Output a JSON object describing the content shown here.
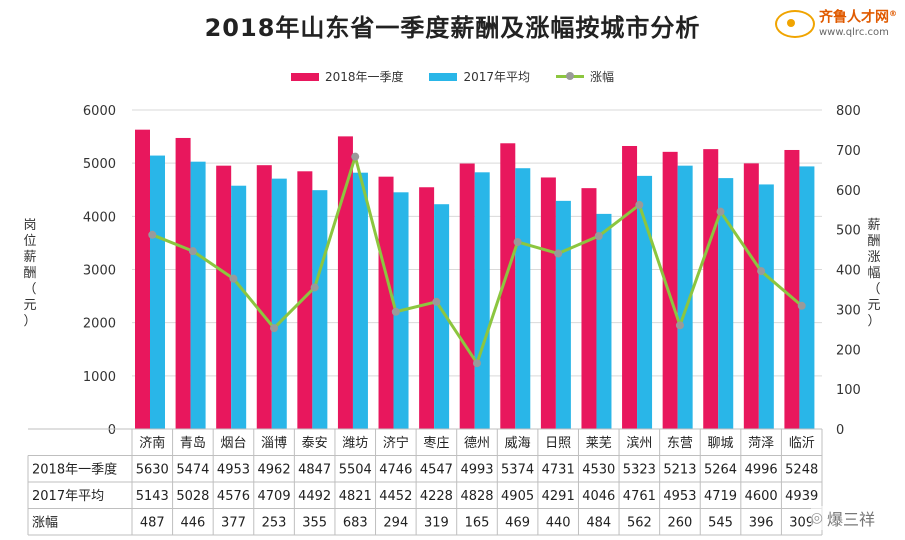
{
  "title": "2018年山东省一季度薪酬及涨幅按城市分析",
  "brand": {
    "name": "齐鲁人才网",
    "url": "www.qlrc.com",
    "mark": "®"
  },
  "watermark": "爆三祥",
  "colors": {
    "bar2018": "#e8175d",
    "bar2017": "#29b6e8",
    "line": "#8cc63f",
    "marker": "#9a9a9a",
    "grid": "#d9d9d9"
  },
  "chart_data": {
    "type": "bar",
    "title": "2018年山东省一季度薪酬及涨幅按城市分析",
    "categories": [
      "济南",
      "青岛",
      "烟台",
      "淄博",
      "泰安",
      "潍坊",
      "济宁",
      "枣庄",
      "德州",
      "威海",
      "日照",
      "莱芜",
      "滨州",
      "东营",
      "聊城",
      "菏泽",
      "临沂"
    ],
    "series": [
      {
        "name": "2018年一季度",
        "type": "bar",
        "axis": "left",
        "values": [
          5630,
          5474,
          4953,
          4962,
          4847,
          5504,
          4746,
          4547,
          4993,
          5374,
          4731,
          4530,
          5323,
          5213,
          5264,
          4996,
          5248
        ]
      },
      {
        "name": "2017年平均",
        "type": "bar",
        "axis": "left",
        "values": [
          5143,
          5028,
          4576,
          4709,
          4492,
          4821,
          4452,
          4228,
          4828,
          4905,
          4291,
          4046,
          4761,
          4953,
          4719,
          4600,
          4939
        ]
      },
      {
        "name": "涨幅",
        "type": "line",
        "axis": "right",
        "values": [
          487,
          446,
          377,
          253,
          355,
          683,
          294,
          319,
          165,
          469,
          440,
          484,
          562,
          260,
          545,
          396,
          309
        ]
      }
    ],
    "ylabel": "岗位薪酬（元）",
    "y2label": "薪酬涨幅（元）",
    "ylim": [
      0,
      6000
    ],
    "y2lim": [
      0,
      800
    ],
    "yticks": [
      0,
      1000,
      2000,
      3000,
      4000,
      5000,
      6000
    ],
    "y2ticks": [
      0,
      100,
      200,
      300,
      400,
      500,
      600,
      700,
      800
    ],
    "legend": "top-center",
    "table": {
      "row_labels": [
        "2018年一季度",
        "2017年平均",
        "涨幅"
      ],
      "rows": [
        [
          "5630",
          "5474",
          "4953",
          "4962",
          "4847",
          "5504",
          "4746",
          "4547",
          "4993",
          "5374",
          "4731",
          "4530",
          "5323",
          "5213",
          "5264",
          "4996",
          "5248"
        ],
        [
          "5143",
          "5028",
          "4576",
          "4709",
          "4492",
          "4821",
          "4452",
          "4228",
          "4828",
          "4905",
          "4291",
          "4046",
          "4761",
          "4953",
          "4719",
          "4600",
          "4939"
        ],
        [
          "487",
          "446",
          "377",
          "253",
          "355",
          "683",
          "294",
          "319",
          "165",
          "469",
          "440",
          "484",
          "562",
          "260",
          "545",
          "396",
          "309"
        ]
      ]
    }
  }
}
